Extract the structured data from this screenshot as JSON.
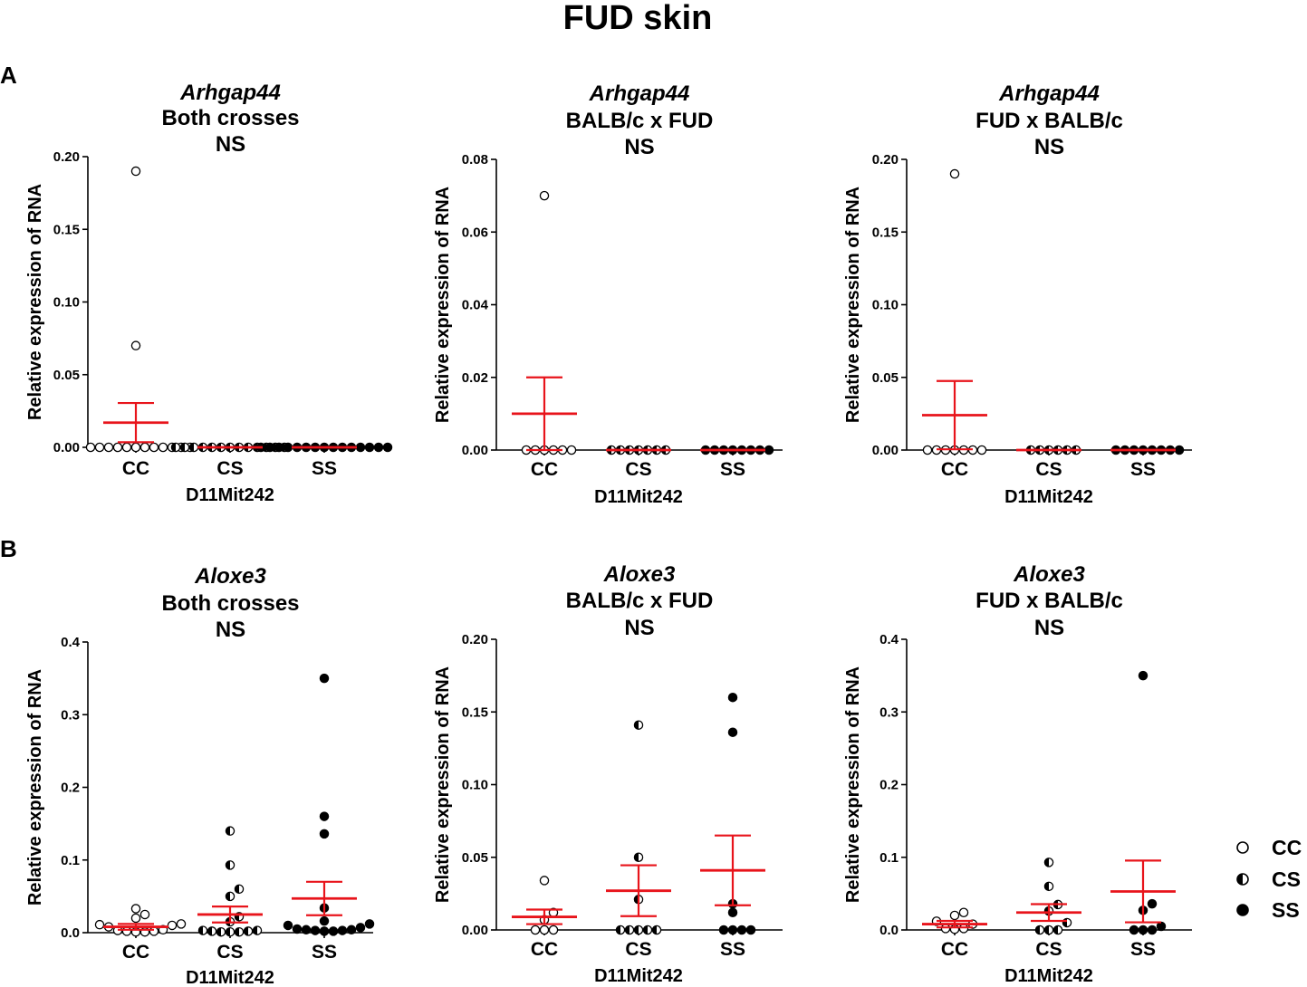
{
  "figure": {
    "title": "FUD skin",
    "panel_labels": [
      "A",
      "B"
    ]
  },
  "legend": {
    "entries": [
      {
        "label": "CC",
        "marker": "open-circle"
      },
      {
        "label": "CS",
        "marker": "half-filled-circle"
      },
      {
        "label": "SS",
        "marker": "filled-circle"
      }
    ]
  },
  "colors": {
    "mean_line": "#e8141b",
    "axis": "#000000",
    "marker": "#000000"
  },
  "chart_data": [
    {
      "type": "scatter",
      "panel": "A",
      "title": [
        "Arhgap44",
        "Both crosses",
        "NS"
      ],
      "xlabel": "D11Mit242",
      "ylabel": "Relative expression of RNA",
      "categories": [
        "CC",
        "CS",
        "SS"
      ],
      "ylim": [
        0,
        0.2
      ],
      "yticks": [
        "0.00",
        "0.05",
        "0.10",
        "0.15",
        "0.20"
      ],
      "yticks_values": [
        0,
        0.05,
        0.1,
        0.15,
        0.2
      ],
      "points": {
        "CC": [
          0,
          0,
          0,
          0,
          0,
          0,
          0,
          0,
          0,
          0,
          0,
          0,
          0.07,
          0.19
        ],
        "CS": [
          0,
          0,
          0,
          0,
          0,
          0,
          0,
          0,
          0,
          0,
          0,
          0,
          0
        ],
        "SS": [
          0,
          0,
          0,
          0,
          0,
          0,
          0,
          0,
          0,
          0,
          0,
          0,
          0,
          0,
          0
        ]
      },
      "mean": {
        "CC": 0.017,
        "CS": 0,
        "SS": 0
      },
      "sem": {
        "CC": 0.0135,
        "CS": 0,
        "SS": 0
      }
    },
    {
      "type": "scatter",
      "panel": "A",
      "title": [
        "Arhgap44",
        "BALB/c x  FUD",
        "NS"
      ],
      "xlabel": "D11Mit242",
      "ylabel": "Relative expression of RNA",
      "categories": [
        "CC",
        "CS",
        "SS"
      ],
      "ylim": [
        0,
        0.08
      ],
      "yticks": [
        "0.00",
        "0.02",
        "0.04",
        "0.06",
        "0.08"
      ],
      "yticks_values": [
        0,
        0.02,
        0.04,
        0.06,
        0.08
      ],
      "points": {
        "CC": [
          0,
          0,
          0,
          0,
          0,
          0,
          0.07
        ],
        "CS": [
          0,
          0,
          0,
          0,
          0,
          0,
          0
        ],
        "SS": [
          0,
          0,
          0,
          0,
          0,
          0,
          0,
          0
        ]
      },
      "mean": {
        "CC": 0.01,
        "CS": 0,
        "SS": 0
      },
      "sem": {
        "CC": 0.01,
        "CS": 0,
        "SS": 0
      }
    },
    {
      "type": "scatter",
      "panel": "A",
      "title": [
        "Arhgap44",
        "FUD x BALB/c",
        "NS"
      ],
      "xlabel": "D11Mit242",
      "ylabel": "Relative expression of RNA",
      "categories": [
        "CC",
        "CS",
        "SS"
      ],
      "ylim": [
        0,
        0.2
      ],
      "yticks": [
        "0.00",
        "0.05",
        "0.10",
        "0.15",
        "0.20"
      ],
      "yticks_values": [
        0,
        0.05,
        0.1,
        0.15,
        0.2
      ],
      "points": {
        "CC": [
          0,
          0,
          0,
          0,
          0,
          0,
          0,
          0.19
        ],
        "CS": [
          0,
          0,
          0,
          0,
          0,
          0
        ],
        "SS": [
          0,
          0,
          0,
          0,
          0,
          0,
          0,
          0
        ]
      },
      "mean": {
        "CC": 0.024,
        "CS": 0,
        "SS": 0
      },
      "sem": {
        "CC": 0.0235,
        "CS": 0,
        "SS": 0
      }
    },
    {
      "type": "scatter",
      "panel": "B",
      "title": [
        "Aloxe3",
        "Both crosses",
        "NS"
      ],
      "xlabel": "D11Mit242",
      "ylabel": "Relative expression of RNA",
      "categories": [
        "CC",
        "CS",
        "SS"
      ],
      "ylim": [
        0,
        0.4
      ],
      "yticks": [
        "0.0",
        "0.1",
        "0.2",
        "0.3",
        "0.4"
      ],
      "yticks_values": [
        0,
        0.1,
        0.2,
        0.3,
        0.4
      ],
      "points": {
        "CC": [
          0.001,
          0.002,
          0.003,
          0.002,
          0.001,
          0.004,
          0.011,
          0.012,
          0.008,
          0.025,
          0.02,
          0.033,
          0.01
        ],
        "CS": [
          0.001,
          0.002,
          0.001,
          0.003,
          0.002,
          0.001,
          0.015,
          0.022,
          0.05,
          0.06,
          0.093,
          0.14,
          0.003
        ],
        "SS": [
          0.002,
          0.003,
          0.004,
          0.002,
          0.003,
          0.005,
          0.007,
          0.01,
          0.012,
          0.016,
          0.034,
          0.136,
          0.16,
          0.35,
          0.004
        ]
      },
      "mean": {
        "CC": 0.008,
        "CS": 0.025,
        "SS": 0.047
      },
      "sem": {
        "CC": 0.004,
        "CS": 0.011,
        "SS": 0.023
      }
    },
    {
      "type": "scatter",
      "panel": "B",
      "title": [
        "Aloxe3",
        "BALB/c x FUD",
        "NS"
      ],
      "xlabel": "D11Mit242",
      "ylabel": "Relative expression of RNA",
      "categories": [
        "CC",
        "CS",
        "SS"
      ],
      "ylim": [
        0,
        0.2
      ],
      "yticks": [
        "0.00",
        "0.05",
        "0.10",
        "0.15",
        "0.20"
      ],
      "yticks_values": [
        0,
        0.05,
        0.1,
        0.15,
        0.2
      ],
      "points": {
        "CC": [
          0,
          0,
          0.007,
          0.012,
          0.034,
          0
        ],
        "CS": [
          0,
          0,
          0,
          0,
          0,
          0.021,
          0.05,
          0.141
        ],
        "SS": [
          0,
          0,
          0,
          0,
          0.018,
          0.012,
          0.136,
          0.16
        ]
      },
      "mean": {
        "CC": 0.009,
        "CS": 0.027,
        "SS": 0.041
      },
      "sem": {
        "CC": 0.005,
        "CS": 0.0175,
        "SS": 0.024
      }
    },
    {
      "type": "scatter",
      "panel": "B",
      "title": [
        "Aloxe3",
        "FUD x BALB/c",
        "NS"
      ],
      "xlabel": "D11Mit242",
      "ylabel": "Relative expression of RNA",
      "categories": [
        "CC",
        "CS",
        "SS"
      ],
      "ylim": [
        0,
        0.4
      ],
      "yticks": [
        "0.0",
        "0.1",
        "0.2",
        "0.3",
        "0.4"
      ],
      "yticks_values": [
        0,
        0.1,
        0.2,
        0.3,
        0.4
      ],
      "points": {
        "CC": [
          0.001,
          0.002,
          0.002,
          0.008,
          0.012,
          0.02,
          0.024
        ],
        "CS": [
          0,
          0,
          0,
          0.01,
          0.026,
          0.035,
          0.06,
          0.093
        ],
        "SS": [
          0,
          0,
          0,
          0.005,
          0.027,
          0.036,
          0.35
        ]
      },
      "mean": {
        "CC": 0.008,
        "CS": 0.024,
        "SS": 0.053
      },
      "sem": {
        "CC": 0.0045,
        "CS": 0.0115,
        "SS": 0.0425
      }
    }
  ]
}
